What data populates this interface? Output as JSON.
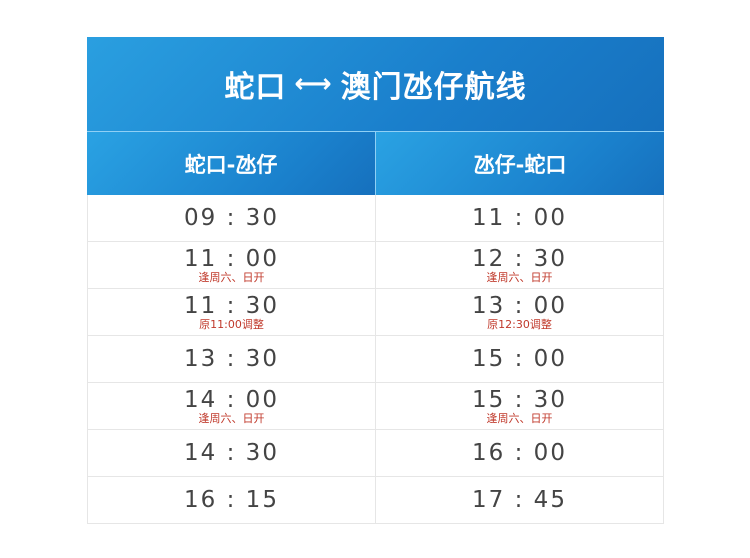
{
  "title": {
    "from": "蛇口",
    "arrow": "⟷",
    "to": "澳门氹仔航线"
  },
  "columns": [
    "蛇口-氹仔",
    "氹仔-蛇口"
  ],
  "rows": [
    [
      {
        "time": "09 : 30",
        "note": ""
      },
      {
        "time": "11 : 00",
        "note": ""
      }
    ],
    [
      {
        "time": "11 : 00",
        "note": "逢周六、日开"
      },
      {
        "time": "12 : 30",
        "note": "逢周六、日开"
      }
    ],
    [
      {
        "time": "11 : 30",
        "note": "原11:00调整"
      },
      {
        "time": "13 : 00",
        "note": "原12:30调整"
      }
    ],
    [
      {
        "time": "13 : 30",
        "note": ""
      },
      {
        "time": "15 : 00",
        "note": ""
      }
    ],
    [
      {
        "time": "14 : 00",
        "note": "逢周六、日开"
      },
      {
        "time": "15 : 30",
        "note": "逢周六、日开"
      }
    ],
    [
      {
        "time": "14 : 30",
        "note": ""
      },
      {
        "time": "16 : 00",
        "note": ""
      }
    ],
    [
      {
        "time": "16 : 15",
        "note": ""
      },
      {
        "time": "17 : 45",
        "note": ""
      }
    ]
  ],
  "colors": {
    "header_blue": "#1a80cc",
    "note_red": "#c0392b",
    "time_gray": "#444444"
  }
}
